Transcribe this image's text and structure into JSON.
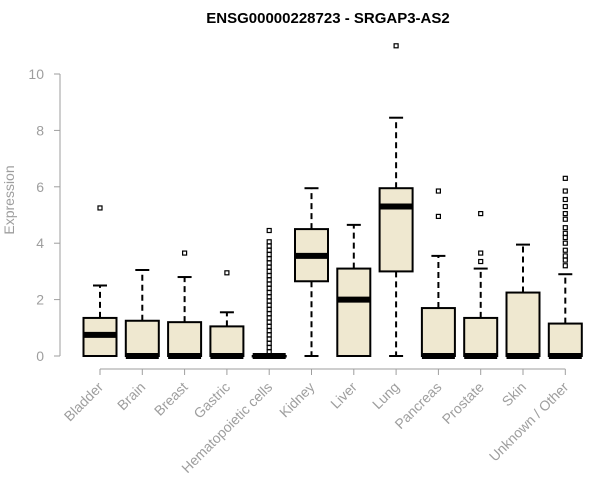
{
  "chart_data": {
    "type": "boxplot",
    "title": "ENSG00000228723 - SRGAP3-AS2",
    "xlabel": "",
    "ylabel": "Expression",
    "ylim": [
      0,
      10
    ],
    "yticks": [
      0,
      2,
      4,
      6,
      8,
      10
    ],
    "box_fill": "#efe8d0",
    "axis_color": "#9e9e9e",
    "categories": [
      "Bladder",
      "Brain",
      "Breast",
      "Gastric",
      "Hematopoietic cells",
      "Kidney",
      "Liver",
      "Lung",
      "Pancreas",
      "Prostate",
      "Skin",
      "Unknown / Other"
    ],
    "boxes": [
      {
        "name": "Bladder",
        "min": 0,
        "q1": 0,
        "median": 0.75,
        "q3": 1.35,
        "max": 2.5,
        "outliers": [
          5.25
        ]
      },
      {
        "name": "Brain",
        "min": 0,
        "q1": 0,
        "median": 0,
        "q3": 1.25,
        "max": 3.05,
        "outliers": []
      },
      {
        "name": "Breast",
        "min": 0,
        "q1": 0,
        "median": 0,
        "q3": 1.2,
        "max": 2.8,
        "outliers": [
          3.65
        ]
      },
      {
        "name": "Gastric",
        "min": 0,
        "q1": 0,
        "median": 0,
        "q3": 1.05,
        "max": 1.55,
        "outliers": [
          2.95
        ]
      },
      {
        "name": "Hematopoietic cells",
        "min": 0,
        "q1": 0,
        "median": 0,
        "q3": 0,
        "max": 0,
        "outliers": [
          0.15,
          0.3,
          0.45,
          0.6,
          0.75,
          0.9,
          1.05,
          1.2,
          1.35,
          1.5,
          1.65,
          1.8,
          1.95,
          2.1,
          2.25,
          2.4,
          2.55,
          2.7,
          2.85,
          3.0,
          3.15,
          3.3,
          3.45,
          3.6,
          3.75,
          3.9,
          4.05,
          4.45
        ]
      },
      {
        "name": "Kidney",
        "min": 0,
        "q1": 2.65,
        "median": 3.55,
        "q3": 4.5,
        "max": 5.95,
        "outliers": []
      },
      {
        "name": "Liver",
        "min": 0,
        "q1": 0,
        "median": 2.0,
        "q3": 3.1,
        "max": 4.65,
        "outliers": []
      },
      {
        "name": "Lung",
        "min": 0,
        "q1": 3.0,
        "median": 5.3,
        "q3": 5.95,
        "max": 8.45,
        "outliers": [
          11.0
        ]
      },
      {
        "name": "Pancreas",
        "min": 0,
        "q1": 0,
        "median": 0,
        "q3": 1.7,
        "max": 3.55,
        "outliers": [
          4.95,
          5.85
        ]
      },
      {
        "name": "Prostate",
        "min": 0,
        "q1": 0,
        "median": 0,
        "q3": 1.35,
        "max": 3.1,
        "outliers": [
          3.35,
          3.65,
          5.05
        ]
      },
      {
        "name": "Skin",
        "min": 0,
        "q1": 0,
        "median": 0,
        "q3": 2.25,
        "max": 3.95,
        "outliers": []
      },
      {
        "name": "Unknown / Other",
        "min": 0,
        "q1": 0,
        "median": 0,
        "q3": 1.15,
        "max": 2.9,
        "outliers": [
          3.2,
          3.4,
          3.55,
          3.75,
          4.0,
          4.2,
          4.35,
          4.55,
          4.85,
          5.05,
          5.3,
          5.55,
          5.85,
          6.3
        ]
      }
    ]
  }
}
